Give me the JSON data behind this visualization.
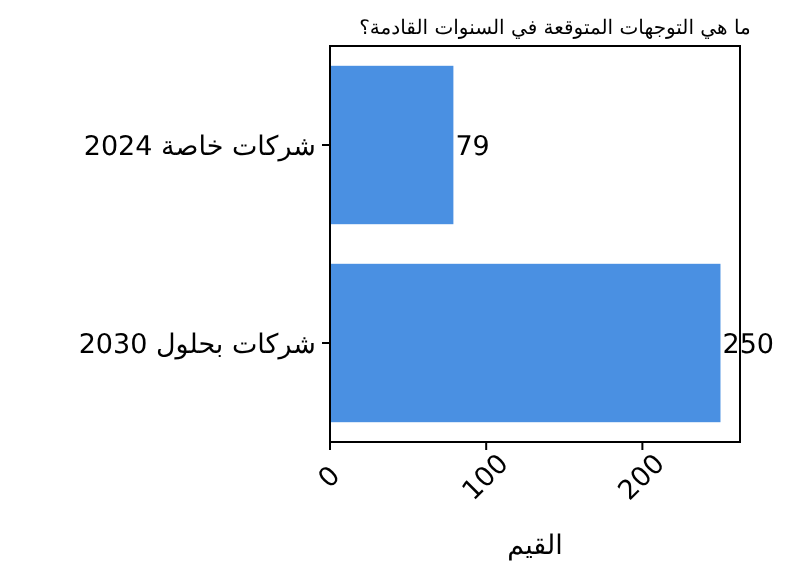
{
  "chart_data": {
    "type": "bar",
    "orientation": "horizontal",
    "title": "ما هي التوجهات المتوقعة في السنوات القادمة؟",
    "xlabel": "القيم",
    "categories": [
      "شركات خاصة 2024",
      "شركات بحلول 2030"
    ],
    "values": [
      79,
      250
    ],
    "color": "#4a90e2",
    "data_labels": true,
    "xlim": [
      0,
      262.5
    ],
    "xticks": [
      0,
      100,
      200
    ],
    "grid": false
  }
}
